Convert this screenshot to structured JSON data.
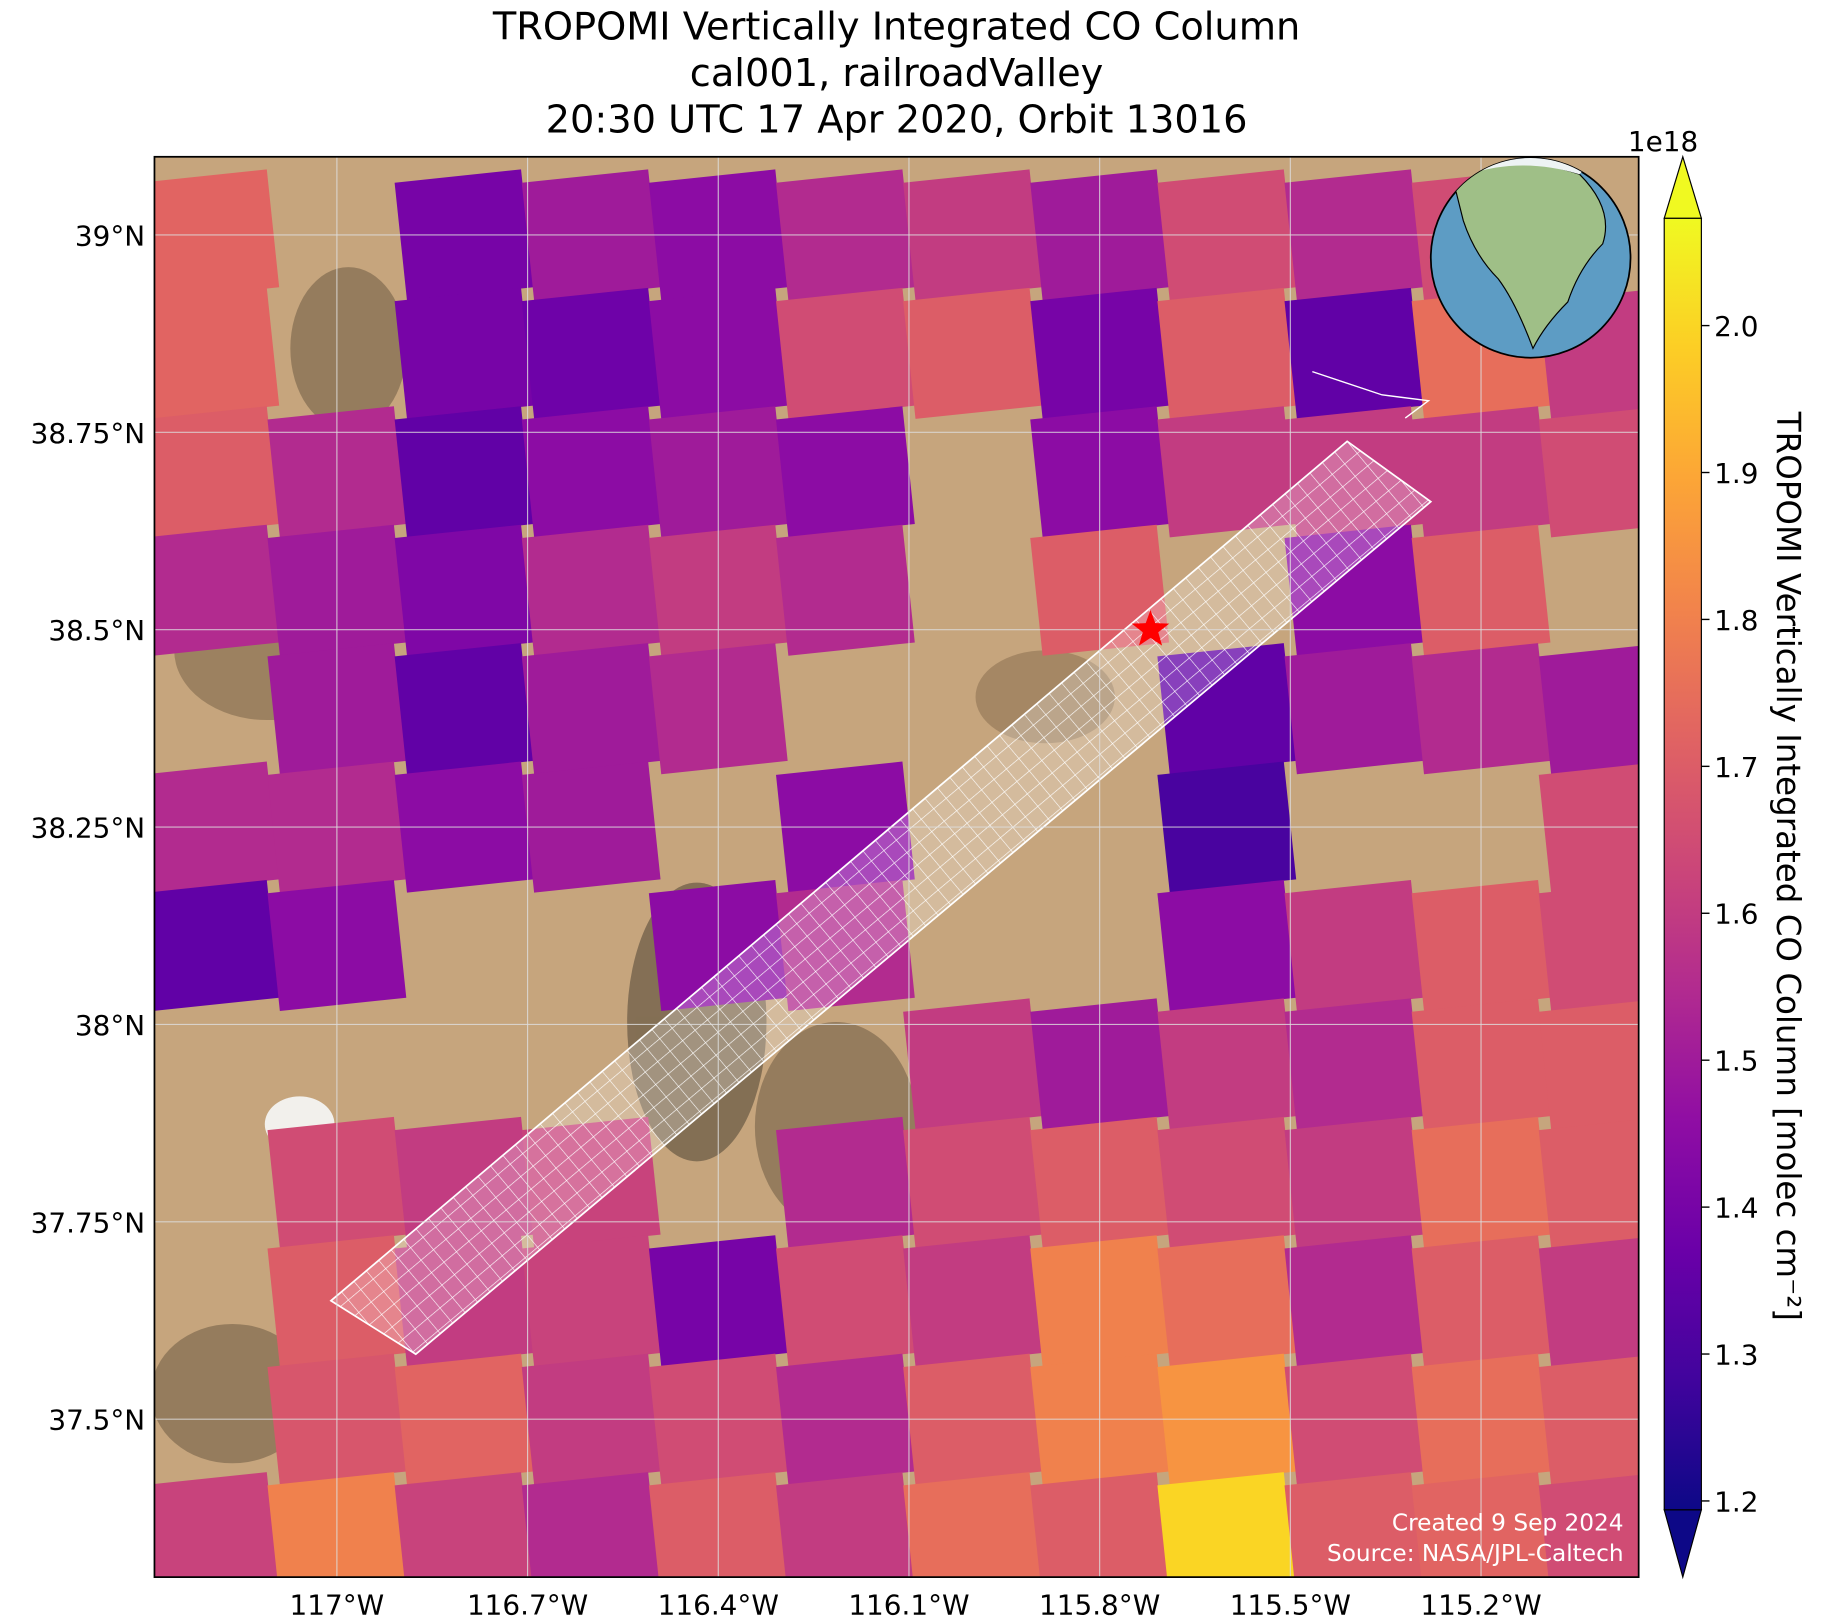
{
  "chart_data": {
    "type": "heatmap",
    "title_lines": [
      "TROPOMI Vertically Integrated CO Column",
      "cal001, railroadValley",
      "20:30 UTC 17 Apr 2020, Orbit 13016"
    ],
    "xlim": [
      -117.287,
      -114.952
    ],
    "ylim": [
      37.3,
      39.099
    ],
    "xticks": [
      {
        "value": -117,
        "label": "117°W"
      },
      {
        "value": -116.7,
        "label": "116.7°W"
      },
      {
        "value": -116.4,
        "label": "116.4°W"
      },
      {
        "value": -116.1,
        "label": "116.1°W"
      },
      {
        "value": -115.8,
        "label": "115.8°W"
      },
      {
        "value": -115.5,
        "label": "115.5°W"
      },
      {
        "value": -115.2,
        "label": "115.2°W"
      }
    ],
    "yticks": [
      {
        "value": 37.5,
        "label": "37.5°N"
      },
      {
        "value": 37.75,
        "label": "37.75°N"
      },
      {
        "value": 38,
        "label": "38°N"
      },
      {
        "value": 38.25,
        "label": "38.25°N"
      },
      {
        "value": 38.5,
        "label": "38.5°N"
      },
      {
        "value": 38.75,
        "label": "38.75°N"
      },
      {
        "value": 39,
        "label": "39°N"
      }
    ],
    "grid": true,
    "colormap": "plasma",
    "colorbar_label": "TROPOMI Vertically Integrated CO Column [molec cm⁻²]",
    "colorbar_offset": "1e18",
    "clim": [
      1.194,
      2.073
    ],
    "cticks": [
      1.2,
      1.3,
      1.4,
      1.5,
      1.6,
      1.7,
      1.8,
      1.9,
      {
        "value": 2,
        "label": "2.0"
      }
    ],
    "site": {
      "lon": -115.72,
      "lat": 38.5,
      "color": "#ff0000"
    },
    "grid_data": {
      "lon": [
        -117.2,
        -117.0,
        -116.8,
        -116.6,
        -116.4,
        -116.2,
        -116.0,
        -115.8,
        -115.6,
        -115.4,
        -115.2,
        -115.0
      ],
      "lat": [
        39.0,
        38.85,
        38.7,
        38.55,
        38.4,
        38.25,
        38.1,
        37.95,
        37.8,
        37.65,
        37.5,
        37.35
      ],
      "values": [
        [
          1.72,
          null,
          1.4,
          1.5,
          1.45,
          1.55,
          1.6,
          1.5,
          1.65,
          1.55,
          1.65,
          null
        ],
        [
          1.72,
          null,
          1.4,
          1.38,
          1.45,
          1.65,
          1.7,
          1.4,
          1.7,
          1.35,
          1.75,
          1.6
        ],
        [
          1.7,
          1.55,
          1.35,
          1.45,
          1.5,
          1.45,
          null,
          1.45,
          1.6,
          1.6,
          1.6,
          1.65
        ],
        [
          1.55,
          1.5,
          1.42,
          1.55,
          1.6,
          1.55,
          null,
          1.7,
          null,
          1.45,
          1.7,
          null
        ],
        [
          null,
          1.5,
          1.35,
          1.5,
          1.55,
          null,
          null,
          null,
          1.35,
          1.5,
          1.55,
          1.5
        ],
        [
          1.55,
          1.55,
          1.45,
          1.5,
          null,
          1.45,
          null,
          null,
          1.3,
          null,
          null,
          1.65
        ],
        [
          1.35,
          1.45,
          null,
          null,
          1.45,
          1.55,
          null,
          null,
          1.45,
          1.6,
          1.7,
          1.65
        ],
        [
          null,
          null,
          null,
          null,
          null,
          null,
          1.6,
          1.5,
          1.6,
          1.55,
          1.7,
          1.7
        ],
        [
          null,
          1.65,
          1.6,
          1.62,
          null,
          1.55,
          1.65,
          1.7,
          1.65,
          1.6,
          1.75,
          1.7
        ],
        [
          null,
          1.7,
          1.6,
          1.62,
          1.4,
          1.65,
          1.6,
          1.8,
          1.75,
          1.55,
          1.7,
          1.6
        ],
        [
          null,
          1.68,
          1.72,
          1.6,
          1.65,
          1.55,
          1.7,
          1.8,
          1.85,
          1.65,
          1.75,
          1.7
        ],
        [
          1.62,
          1.8,
          1.62,
          1.55,
          1.7,
          1.6,
          1.75,
          1.7,
          2.0,
          1.7,
          1.72,
          1.65
        ]
      ]
    },
    "credits": [
      "Created 9 Sep 2024",
      "Source: NASA/JPL-Caltech"
    ]
  }
}
